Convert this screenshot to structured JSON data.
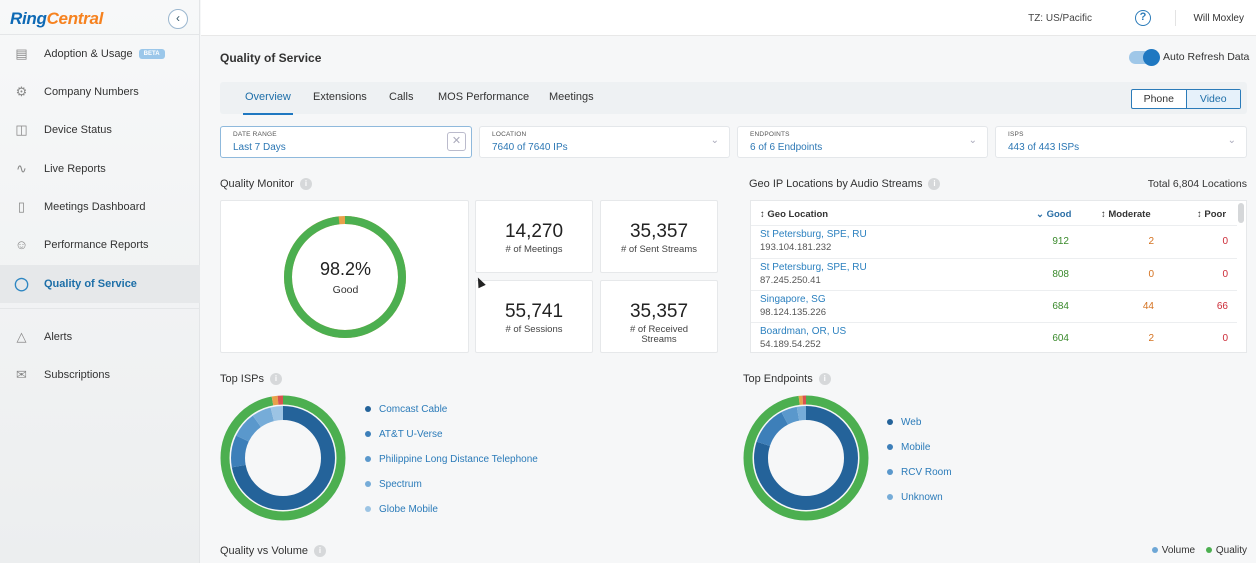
{
  "brand": {
    "logo_part1": "Ring",
    "logo_part2": "Central"
  },
  "sidebar": {
    "items": [
      {
        "label": "Adoption & Usage",
        "badge": "BETA",
        "icon": "bar-chart-icon"
      },
      {
        "label": "Company Numbers",
        "icon": "gear-icon"
      },
      {
        "label": "Device Status",
        "icon": "desk-phone-icon"
      },
      {
        "label": "Live Reports",
        "icon": "line-chart-icon"
      },
      {
        "label": "Meetings Dashboard",
        "icon": "video-camera-icon"
      },
      {
        "label": "Performance Reports",
        "icon": "user-icon"
      },
      {
        "label": "Quality of Service",
        "icon": "qos-ring-icon",
        "active": true
      },
      {
        "label": "Alerts",
        "icon": "bell-icon"
      },
      {
        "label": "Subscriptions",
        "icon": "envelope-icon"
      }
    ]
  },
  "header": {
    "timezone": "TZ: US/Pacific",
    "user": "Will Moxley"
  },
  "page": {
    "title": "Quality of Service",
    "auto_refresh_label": "Auto Refresh Data",
    "auto_refresh_on": true
  },
  "tabs": [
    "Overview",
    "Extensions",
    "Calls",
    "MOS Performance",
    "Meetings"
  ],
  "media_toggle": {
    "phone": "Phone",
    "video": "Video",
    "selected": "Video"
  },
  "filters": [
    {
      "label": "DATE RANGE",
      "value": "Last 7 Days"
    },
    {
      "label": "LOCATION",
      "value": "7640 of 7640 IPs"
    },
    {
      "label": "ENDPOINTS",
      "value": "6 of 6 Endpoints"
    },
    {
      "label": "ISPS",
      "value": "443 of 443 ISPs"
    }
  ],
  "quality_monitor": {
    "title": "Quality Monitor",
    "percent": "98.2%",
    "percent_value": 98.2,
    "status": "Good",
    "stats": [
      {
        "value": "14,270",
        "label": "# of Meetings"
      },
      {
        "value": "35,357",
        "label": "# of Sent Streams"
      },
      {
        "value": "55,741",
        "label": "# of Sessions"
      },
      {
        "value": "35,357",
        "label": "# of Received Streams"
      }
    ]
  },
  "geo": {
    "title": "Geo IP Locations by Audio Streams",
    "total": "Total 6,804 Locations",
    "columns": [
      "Geo Location",
      "Good",
      "Moderate",
      "Poor"
    ],
    "rows": [
      {
        "location": "St Petersburg, SPE, RU",
        "ip": "193.104.181.232",
        "good": "912",
        "moderate": "2",
        "poor": "0"
      },
      {
        "location": "St Petersburg, SPE, RU",
        "ip": "87.245.250.41",
        "good": "808",
        "moderate": "0",
        "poor": "0"
      },
      {
        "location": "Singapore, SG",
        "ip": "98.124.135.226",
        "good": "684",
        "moderate": "44",
        "poor": "66"
      },
      {
        "location": "Boardman, OR, US",
        "ip": "54.189.54.252",
        "good": "604",
        "moderate": "2",
        "poor": "0"
      }
    ]
  },
  "top_isps": {
    "title": "Top ISPs",
    "items": [
      {
        "label": "Comcast Cable",
        "color": "#24639a",
        "share": 0.72
      },
      {
        "label": "AT&T U-Verse",
        "color": "#3d7fb9",
        "share": 0.1
      },
      {
        "label": "Philippine Long Distance Telephone",
        "color": "#5a98cc",
        "share": 0.08
      },
      {
        "label": "Spectrum",
        "color": "#76acd8",
        "share": 0.06
      },
      {
        "label": "Globe Mobile",
        "color": "#9cc4e4",
        "share": 0.04
      }
    ]
  },
  "top_endpoints": {
    "title": "Top Endpoints",
    "items": [
      {
        "label": "Web",
        "color": "#24639a",
        "share": 0.8
      },
      {
        "label": "Mobile",
        "color": "#3d7fb9",
        "share": 0.12
      },
      {
        "label": "RCV Room",
        "color": "#5a98cc",
        "share": 0.05
      },
      {
        "label": "Unknown",
        "color": "#76acd8",
        "share": 0.03
      }
    ]
  },
  "quality_vs_volume": {
    "title": "Quality vs Volume",
    "legend": [
      {
        "label": "Volume",
        "color": "#6ea7d6"
      },
      {
        "label": "Quality",
        "color": "#4caf50"
      }
    ]
  },
  "colors": {
    "accent": "#1f78c1",
    "good": "#4caf50",
    "moderate": "#e8a04a",
    "poor": "#d9534f"
  }
}
